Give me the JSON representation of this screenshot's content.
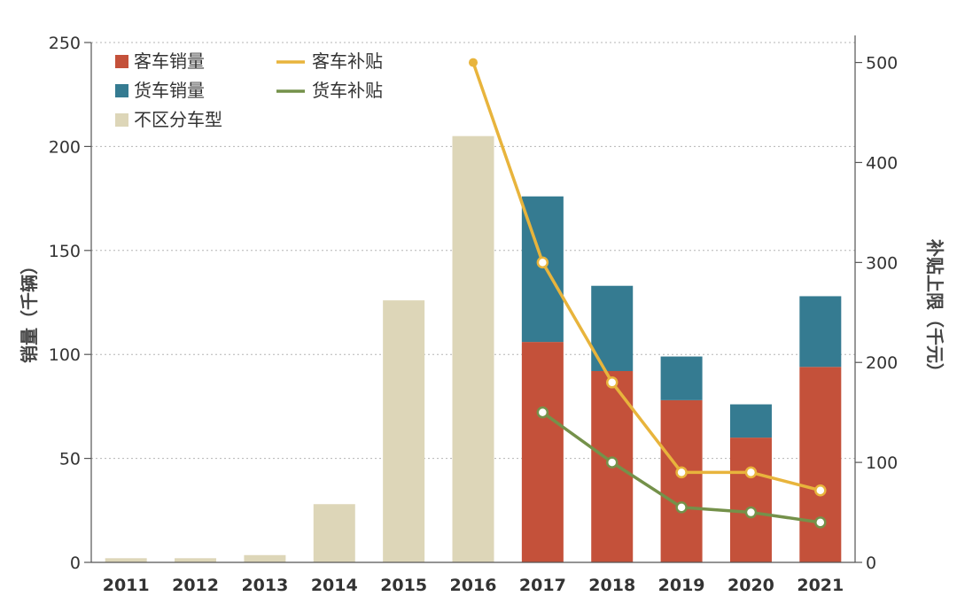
{
  "chart_data": {
    "type": "bar",
    "categories": [
      "2011",
      "2012",
      "2013",
      "2014",
      "2015",
      "2016",
      "2017",
      "2018",
      "2019",
      "2020",
      "2021"
    ],
    "series": [
      {
        "name": "客车销量",
        "kind": "bar",
        "axis": "left",
        "color": "#c4513a",
        "values": [
          null,
          null,
          null,
          null,
          null,
          null,
          106,
          92,
          78,
          60,
          94
        ]
      },
      {
        "name": "货车销量",
        "kind": "bar",
        "axis": "left",
        "color": "#357b91",
        "values": [
          null,
          null,
          null,
          null,
          null,
          null,
          70,
          41,
          21,
          16,
          34
        ]
      },
      {
        "name": "不区分车型",
        "kind": "bar",
        "axis": "left",
        "color": "#ddd6b8",
        "values": [
          2,
          2,
          3.5,
          28,
          126,
          205,
          null,
          null,
          null,
          null,
          null
        ]
      },
      {
        "name": "客车补贴",
        "kind": "line",
        "axis": "right",
        "color": "#e8b43c",
        "values": [
          null,
          null,
          null,
          null,
          null,
          500,
          300,
          180,
          90,
          90,
          72
        ]
      },
      {
        "name": "货车补贴",
        "kind": "line",
        "axis": "right",
        "color": "#74914a",
        "values": [
          null,
          null,
          null,
          null,
          null,
          null,
          150,
          100,
          55,
          50,
          40
        ]
      }
    ],
    "ylabel": "销量（千辆）",
    "y2label": "补贴上限（千元）",
    "ylim": [
      0,
      250
    ],
    "y2lim": [
      0,
      520
    ],
    "yticks": [
      0,
      50,
      100,
      150,
      200,
      250
    ],
    "y2ticks": [
      0,
      100,
      200,
      300,
      400,
      500
    ],
    "grid": true,
    "legend": "top-left"
  }
}
